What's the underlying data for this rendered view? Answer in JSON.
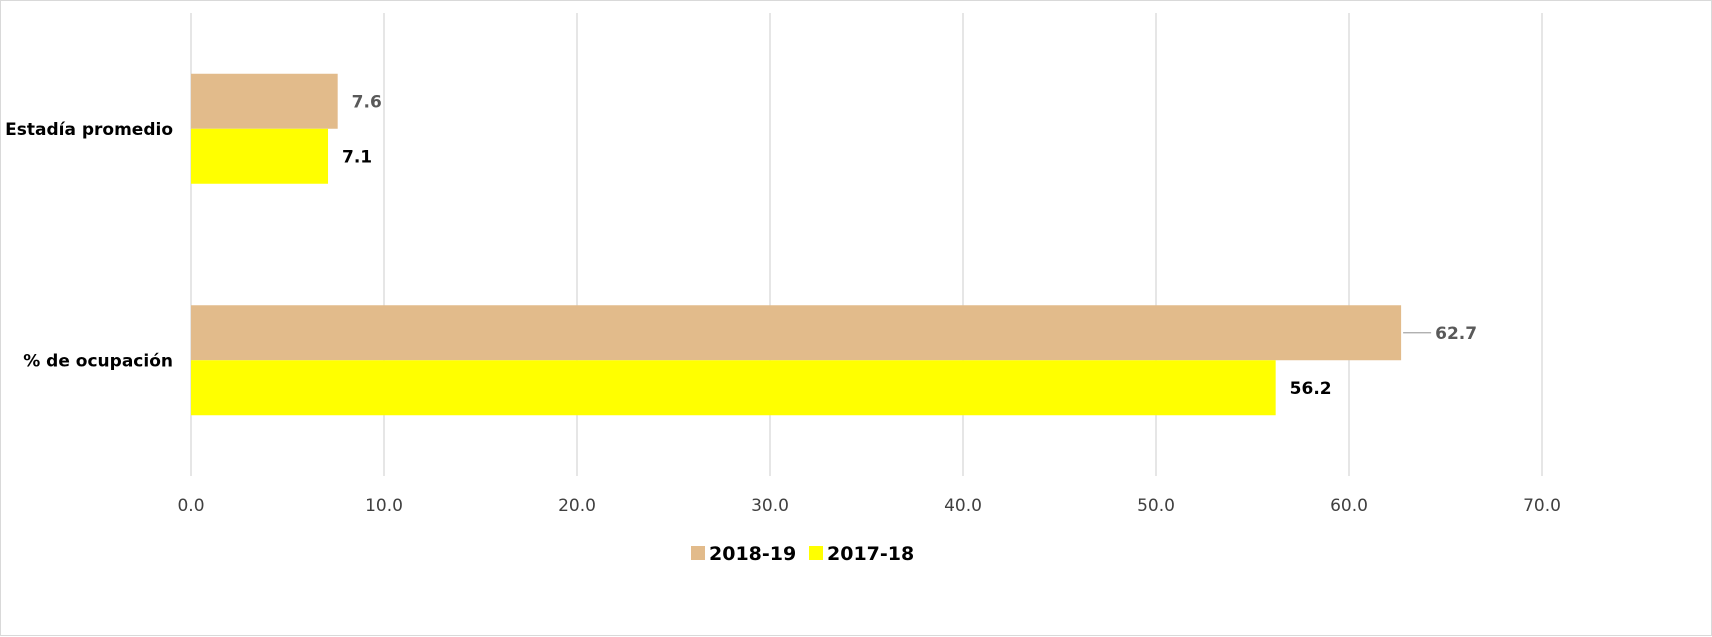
{
  "chart_data": {
    "type": "bar",
    "orientation": "horizontal",
    "categories": [
      "Estadía promedio",
      "% de ocupación"
    ],
    "series": [
      {
        "name": "2018-19",
        "values": [
          7.6,
          62.7
        ],
        "color": "#e2bb8b",
        "label_color": "#595959"
      },
      {
        "name": "2017-18",
        "values": [
          7.1,
          56.2
        ],
        "color": "#ffff00",
        "label_color": "#000000"
      }
    ],
    "xlim": [
      0,
      70
    ],
    "xticks": [
      "0.0",
      "10.0",
      "20.0",
      "30.0",
      "40.0",
      "50.0",
      "60.0",
      "70.0"
    ],
    "grid": true,
    "legend_position": "bottom",
    "gridline_color": "#d9d9d9"
  }
}
